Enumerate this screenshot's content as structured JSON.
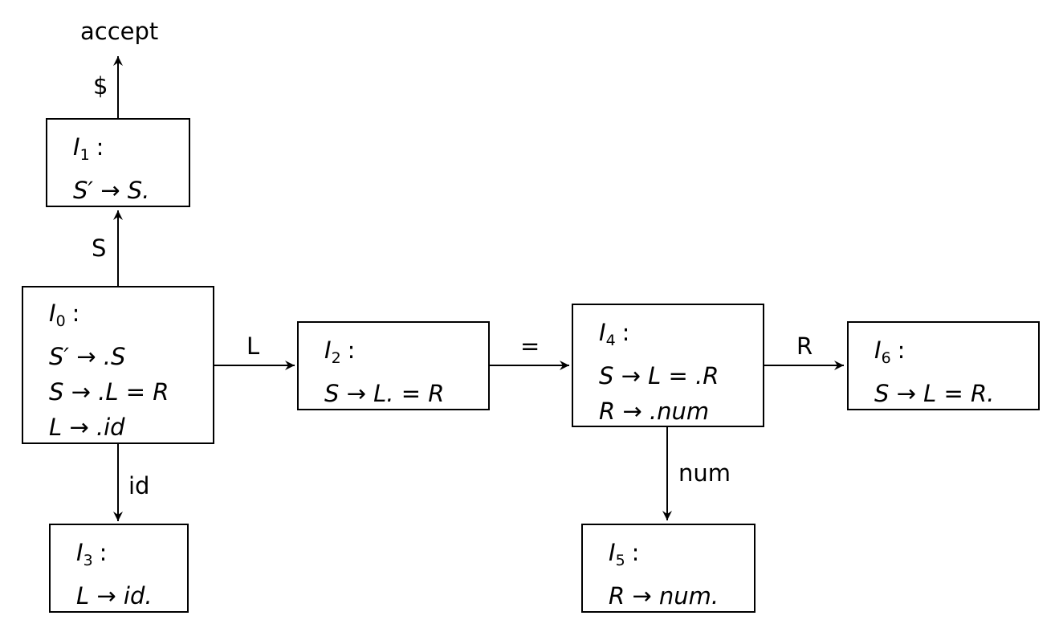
{
  "accept_label": "accept",
  "edges": {
    "i1_accept": "$",
    "i0_i1": "S",
    "i0_i2": "L",
    "i0_i3": "id",
    "i2_i4": "=",
    "i4_i6": "R",
    "i4_i5": "num"
  },
  "states": {
    "i0": {
      "name": "I",
      "index": "0",
      "items": [
        "S′ → .S",
        "S → .L = R",
        "L → .id"
      ]
    },
    "i1": {
      "name": "I",
      "index": "1",
      "items": [
        "S′ → S."
      ]
    },
    "i2": {
      "name": "I",
      "index": "2",
      "items": [
        "S → L. = R"
      ]
    },
    "i3": {
      "name": "I",
      "index": "3",
      "items": [
        "L → id."
      ]
    },
    "i4": {
      "name": "I",
      "index": "4",
      "items": [
        "S → L = .R",
        "R → .num"
      ]
    },
    "i5": {
      "name": "I",
      "index": "5",
      "items": [
        "R → num."
      ]
    },
    "i6": {
      "name": "I",
      "index": "6",
      "items": [
        "S → L = R."
      ]
    }
  }
}
